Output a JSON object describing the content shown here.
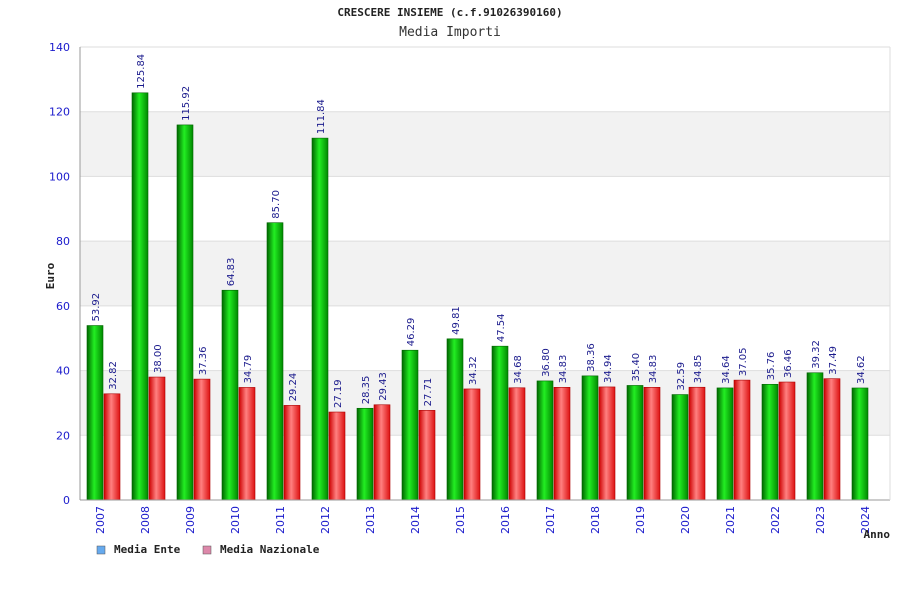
{
  "chart_data": {
    "type": "bar",
    "title": "CRESCERE INSIEME (c.f.91026390160)",
    "subtitle": "Media Importi",
    "ylabel": "Euro",
    "xlabel": "Anno",
    "ylim": [
      0,
      140
    ],
    "yticks": [
      "0",
      "20",
      "40",
      "60",
      "80",
      "100",
      "120",
      "140"
    ],
    "grid": true,
    "legend_position": "bottom-left",
    "categories": [
      "2007",
      "2008",
      "2009",
      "2010",
      "2011",
      "2012",
      "2013",
      "2014",
      "2015",
      "2016",
      "2017",
      "2018",
      "2019",
      "2020",
      "2021",
      "2022",
      "2023",
      "2024"
    ],
    "series": [
      {
        "name": "Media Ente",
        "color": "#00aa00",
        "legend_color": "#66aaee",
        "values": [
          53.92,
          125.84,
          115.92,
          64.83,
          85.7,
          111.84,
          28.35,
          46.29,
          49.81,
          47.54,
          36.8,
          38.36,
          35.4,
          32.59,
          34.64,
          35.76,
          39.32,
          34.62
        ],
        "labels": [
          "53.92",
          "125.84",
          "115.92",
          "64.83",
          "85.70",
          "111.84",
          "28.35",
          "46.29",
          "49.81",
          "47.54",
          "36.80",
          "38.36",
          "35.40",
          "32.59",
          "34.64",
          "35.76",
          "39.32",
          "34.62"
        ]
      },
      {
        "name": "Media Nazionale",
        "color": "#ee1111",
        "legend_color": "#dd88aa",
        "values": [
          32.82,
          38.0,
          37.36,
          34.79,
          29.24,
          27.19,
          29.43,
          27.71,
          34.32,
          34.68,
          34.83,
          34.94,
          34.83,
          34.85,
          37.05,
          36.46,
          37.49,
          null
        ],
        "labels": [
          "32.82",
          "38.00",
          "37.36",
          "34.79",
          "29.24",
          "27.19",
          "29.43",
          "27.71",
          "34.32",
          "34.68",
          "34.83",
          "34.94",
          "34.83",
          "34.85",
          "37.05",
          "36.46",
          "37.49",
          ""
        ]
      }
    ]
  }
}
